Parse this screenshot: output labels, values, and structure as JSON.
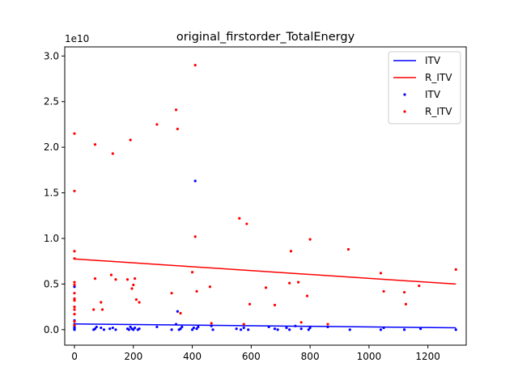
{
  "chart_data": {
    "type": "scatter",
    "title": "original_firstorder_TotalEnergy",
    "xlabel": "",
    "ylabel": "",
    "xlim": [
      -33,
      1330
    ],
    "ylim": [
      -1700000000.0,
      31000000000.0
    ],
    "x_ticks": [
      0,
      200,
      400,
      600,
      800,
      1000,
      1200
    ],
    "x_tick_labels": [
      "0",
      "200",
      "400",
      "600",
      "800",
      "1000",
      "1200"
    ],
    "y_ticks": [
      0,
      5000000000.0,
      10000000000.0,
      15000000000.0,
      20000000000.0,
      25000000000.0,
      30000000000.0
    ],
    "y_tick_labels": [
      "0.0",
      "0.5",
      "1.0",
      "1.5",
      "2.0",
      "2.5",
      "3.0"
    ],
    "y_offset_label": "1e10",
    "grid": false,
    "legend_position": "top-right",
    "colors": {
      "ITV": "#0000ff",
      "R_ITV": "#ff0000",
      "axes": "#000000"
    },
    "series": [
      {
        "name": "ITV",
        "kind": "line",
        "color": "#0000ff",
        "x": [
          0,
          1295
        ],
        "y": [
          630000000.0,
          200000000.0
        ]
      },
      {
        "name": "R_ITV",
        "kind": "line",
        "color": "#ff0000",
        "x": [
          0,
          1295
        ],
        "y": [
          7750000000.0,
          5000000000.0
        ]
      },
      {
        "name": "ITV",
        "kind": "scatter",
        "color": "#0000ff",
        "points": [
          [
            0,
            4700000000.0
          ],
          [
            0,
            1000000000.0
          ],
          [
            0,
            600000000.0
          ],
          [
            0,
            300000000.0
          ],
          [
            0,
            100000000.0
          ],
          [
            0,
            0
          ],
          [
            0,
            200000000.0
          ],
          [
            65,
            0
          ],
          [
            70,
            100000000.0
          ],
          [
            75,
            300000000.0
          ],
          [
            90,
            200000000.0
          ],
          [
            100,
            0
          ],
          [
            120,
            100000000.0
          ],
          [
            130,
            200000000.0
          ],
          [
            140,
            0
          ],
          [
            180,
            100000000.0
          ],
          [
            185,
            0
          ],
          [
            190,
            300000000.0
          ],
          [
            195,
            100000000.0
          ],
          [
            200,
            0
          ],
          [
            205,
            200000000.0
          ],
          [
            215,
            0
          ],
          [
            220,
            100000000.0
          ],
          [
            280,
            300000000.0
          ],
          [
            330,
            0
          ],
          [
            345,
            600000000.0
          ],
          [
            350,
            2000000000.0
          ],
          [
            355,
            0
          ],
          [
            360,
            100000000.0
          ],
          [
            365,
            300000000.0
          ],
          [
            400,
            0
          ],
          [
            405,
            200000000.0
          ],
          [
            410,
            16300000000.0
          ],
          [
            415,
            100000000.0
          ],
          [
            420,
            300000000.0
          ],
          [
            465,
            400000000.0
          ],
          [
            470,
            0
          ],
          [
            550,
            100000000.0
          ],
          [
            565,
            0
          ],
          [
            575,
            200000000.0
          ],
          [
            590,
            0
          ],
          [
            660,
            300000000.0
          ],
          [
            680,
            100000000.0
          ],
          [
            690,
            0
          ],
          [
            720,
            200000000.0
          ],
          [
            730,
            0
          ],
          [
            750,
            400000000.0
          ],
          [
            770,
            100000000.0
          ],
          [
            795,
            0
          ],
          [
            800,
            200000000.0
          ],
          [
            860,
            300000000.0
          ],
          [
            935,
            0
          ],
          [
            1040,
            0
          ],
          [
            1050,
            200000000.0
          ],
          [
            1120,
            0
          ],
          [
            1175,
            100000000.0
          ],
          [
            1295,
            0
          ]
        ]
      },
      {
        "name": "R_ITV",
        "kind": "scatter",
        "color": "#ff0000",
        "points": [
          [
            0,
            21500000000.0
          ],
          [
            0,
            15200000000.0
          ],
          [
            0,
            8600000000.0
          ],
          [
            0,
            7800000000.0
          ],
          [
            0,
            5200000000.0
          ],
          [
            0,
            4900000000.0
          ],
          [
            0,
            4000000000.0
          ],
          [
            0,
            3400000000.0
          ],
          [
            0,
            3200000000.0
          ],
          [
            0,
            2500000000.0
          ],
          [
            0,
            2200000000.0
          ],
          [
            0,
            1700000000.0
          ],
          [
            0,
            900000000.0
          ],
          [
            0,
            500000000.0
          ],
          [
            65,
            2200000000.0
          ],
          [
            70,
            20300000000.0
          ],
          [
            70,
            5600000000.0
          ],
          [
            90,
            3000000000.0
          ],
          [
            95,
            2200000000.0
          ],
          [
            125,
            6000000000.0
          ],
          [
            130,
            19300000000.0
          ],
          [
            140,
            5500000000.0
          ],
          [
            180,
            5500000000.0
          ],
          [
            190,
            20800000000.0
          ],
          [
            195,
            4500000000.0
          ],
          [
            200,
            4900000000.0
          ],
          [
            205,
            5600000000.0
          ],
          [
            210,
            3300000000.0
          ],
          [
            220,
            3000000000.0
          ],
          [
            280,
            22500000000.0
          ],
          [
            330,
            4000000000.0
          ],
          [
            345,
            24100000000.0
          ],
          [
            350,
            22000000000.0
          ],
          [
            360,
            1800000000.0
          ],
          [
            400,
            6300000000.0
          ],
          [
            410,
            10200000000.0
          ],
          [
            410,
            29000000000.0
          ],
          [
            415,
            4200000000.0
          ],
          [
            460,
            4700000000.0
          ],
          [
            465,
            700000000.0
          ],
          [
            560,
            12200000000.0
          ],
          [
            575,
            600000000.0
          ],
          [
            585,
            11600000000.0
          ],
          [
            595,
            2800000000.0
          ],
          [
            650,
            4600000000.0
          ],
          [
            680,
            2700000000.0
          ],
          [
            730,
            5100000000.0
          ],
          [
            735,
            8600000000.0
          ],
          [
            760,
            5200000000.0
          ],
          [
            770,
            800000000.0
          ],
          [
            790,
            3700000000.0
          ],
          [
            800,
            9900000000.0
          ],
          [
            860,
            600000000.0
          ],
          [
            930,
            8800000000.0
          ],
          [
            1040,
            6200000000.0
          ],
          [
            1050,
            4200000000.0
          ],
          [
            1120,
            4100000000.0
          ],
          [
            1125,
            2800000000.0
          ],
          [
            1170,
            4800000000.0
          ],
          [
            1295,
            6600000000.0
          ]
        ]
      }
    ],
    "legend": [
      {
        "label": "ITV",
        "kind": "line",
        "color": "#0000ff"
      },
      {
        "label": "R_ITV",
        "kind": "line",
        "color": "#ff0000"
      },
      {
        "label": "ITV",
        "kind": "marker",
        "color": "#0000ff"
      },
      {
        "label": "R_ITV",
        "kind": "marker",
        "color": "#ff0000"
      }
    ]
  }
}
